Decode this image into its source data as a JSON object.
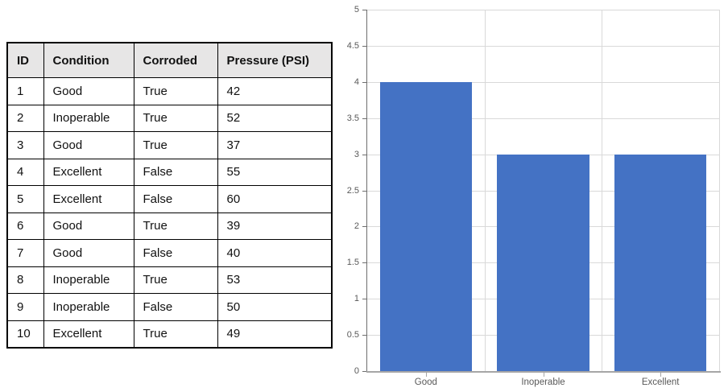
{
  "table": {
    "headers": [
      "ID",
      "Condition",
      "Corroded",
      "Pressure (PSI)"
    ],
    "rows": [
      [
        "1",
        "Good",
        "True",
        "42"
      ],
      [
        "2",
        "Inoperable",
        "True",
        "52"
      ],
      [
        "3",
        "Good",
        "True",
        "37"
      ],
      [
        "4",
        "Excellent",
        "False",
        "55"
      ],
      [
        "5",
        "Excellent",
        "False",
        "60"
      ],
      [
        "6",
        "Good",
        "True",
        "39"
      ],
      [
        "7",
        "Good",
        "False",
        "40"
      ],
      [
        "8",
        "Inoperable",
        "True",
        "53"
      ],
      [
        "9",
        "Inoperable",
        "False",
        "50"
      ],
      [
        "10",
        "Excellent",
        "True",
        "49"
      ]
    ],
    "header_bg": "#E7E6E6",
    "border_color": "#000000"
  },
  "chart_data": {
    "type": "bar",
    "title": "",
    "xlabel": "",
    "ylabel": "",
    "categories": [
      "Good",
      "Inoperable",
      "Excellent"
    ],
    "values": [
      4,
      3,
      3
    ],
    "ylim": [
      0,
      5
    ],
    "ytick_step": 0.5,
    "ytick_labels": [
      "0",
      "0.5",
      "1",
      "1.5",
      "2",
      "2.5",
      "3",
      "3.5",
      "4",
      "4.5",
      "5"
    ],
    "grid": true,
    "legend": false,
    "bar_color": "#4472C4",
    "gridline_color": "#D9D9D9",
    "y_axis_color": "#6E6E6E",
    "x_axis_color": "#A6A6A6",
    "tick_label_color": "#595959"
  }
}
